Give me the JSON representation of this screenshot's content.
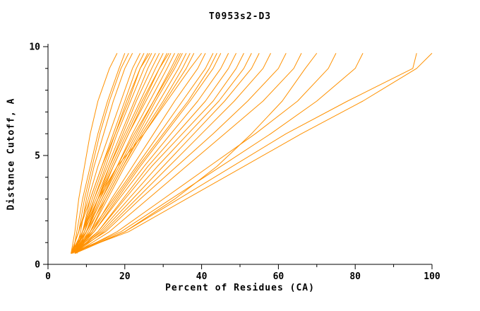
{
  "chart_data": {
    "type": "line",
    "title": "T0953s2-D3",
    "xlabel": "Percent of Residues (CA)",
    "ylabel": "Distance Cutoff, A",
    "xlim": [
      0,
      100
    ],
    "ylim": [
      0,
      10
    ],
    "xticks": [
      0,
      20,
      40,
      60,
      80,
      100
    ],
    "yticks": [
      0,
      5,
      10
    ],
    "x_minor_step": 10,
    "y_minor_step": 1,
    "grid": false,
    "legend": "none",
    "line_color": "#ff9100",
    "axis_color": "#000000",
    "background_color": "#ffffff",
    "y_levels": [
      0.5,
      1.5,
      3,
      4.5,
      6,
      7.5,
      9,
      9.7
    ],
    "series": [
      {
        "x": [
          6,
          7,
          8,
          9.5,
          11,
          13,
          16,
          18
        ]
      },
      {
        "x": [
          6.5,
          7.5,
          9,
          11,
          13,
          15.5,
          18.5,
          20
        ]
      },
      {
        "x": [
          6,
          8,
          9.5,
          11.5,
          13.5,
          16,
          19,
          21
        ]
      },
      {
        "x": [
          7,
          8.5,
          10,
          12,
          14.5,
          17,
          20,
          22
        ]
      },
      {
        "x": [
          6,
          8,
          10.5,
          13,
          16,
          19,
          22,
          24
        ]
      },
      {
        "x": [
          7,
          9,
          11,
          14,
          17,
          20,
          23,
          25
        ]
      },
      {
        "x": [
          6,
          8,
          11,
          14,
          17.5,
          21,
          24,
          26
        ]
      },
      {
        "x": [
          7,
          9,
          11.5,
          14.5,
          17.5,
          20.5,
          24,
          26.5
        ]
      },
      {
        "x": [
          7,
          9.5,
          12,
          15,
          18,
          21.5,
          25,
          27
        ]
      },
      {
        "x": [
          6,
          9,
          12,
          15.5,
          19,
          22.5,
          26,
          28
        ]
      },
      {
        "x": [
          7,
          10,
          13,
          16,
          19.5,
          23,
          27,
          29
        ]
      },
      {
        "x": [
          6,
          9,
          12.5,
          16,
          20,
          24,
          28,
          30
        ]
      },
      {
        "x": [
          7,
          10,
          13.5,
          17,
          21,
          25,
          29,
          31
        ]
      },
      {
        "x": [
          6.5,
          9.5,
          13,
          16.5,
          20.5,
          24.5,
          29,
          31.5
        ]
      },
      {
        "x": [
          6,
          9.5,
          13,
          17,
          21,
          25.5,
          30,
          32
        ]
      },
      {
        "x": [
          7,
          10,
          14,
          18,
          22,
          26.5,
          31,
          33
        ]
      },
      {
        "x": [
          6,
          10,
          14,
          18.5,
          23,
          27.5,
          32,
          34
        ]
      },
      {
        "x": [
          7,
          10,
          13.5,
          18,
          22.5,
          27.5,
          32.5,
          34.5
        ]
      },
      {
        "x": [
          7,
          10.5,
          14.5,
          19,
          23.5,
          28,
          33,
          35
        ]
      },
      {
        "x": [
          6,
          10,
          15,
          19.5,
          24,
          29,
          34,
          36
        ]
      },
      {
        "x": [
          7.5,
          11,
          15,
          19.5,
          24.5,
          30,
          35,
          37
        ]
      },
      {
        "x": [
          7,
          11,
          15.5,
          20,
          25,
          30.5,
          36,
          38
        ]
      },
      {
        "x": [
          6,
          9,
          13,
          18,
          25,
          31,
          37,
          40
        ]
      },
      {
        "x": [
          7,
          11.5,
          16.5,
          22,
          27.5,
          33,
          39,
          41
        ]
      },
      {
        "x": [
          6,
          11,
          17,
          23,
          29,
          35,
          41,
          43
        ]
      },
      {
        "x": [
          6,
          11.5,
          17.5,
          23.5,
          30,
          36.5,
          42,
          44
        ]
      },
      {
        "x": [
          7,
          12,
          18,
          24,
          30.5,
          37,
          43,
          45
        ]
      },
      {
        "x": [
          6,
          12,
          18.5,
          25,
          32,
          39,
          45,
          47
        ]
      },
      {
        "x": [
          7,
          13,
          19.5,
          26,
          33.5,
          41,
          47,
          49
        ]
      },
      {
        "x": [
          6,
          13,
          20,
          27,
          35,
          43,
          49,
          51
        ]
      },
      {
        "x": [
          7,
          13.5,
          21,
          28.5,
          36.5,
          44.5,
          51,
          53
        ]
      },
      {
        "x": [
          6,
          14,
          22,
          30,
          38,
          46,
          53,
          55
        ]
      },
      {
        "x": [
          7,
          14.5,
          23,
          31.5,
          40,
          48.5,
          56,
          58
        ]
      },
      {
        "x": [
          6,
          15,
          24,
          33.5,
          43,
          52,
          60,
          62
        ]
      },
      {
        "x": [
          7,
          16,
          26,
          36,
          46,
          56,
          64,
          66
        ]
      },
      {
        "x": [
          6,
          20,
          33,
          44,
          53,
          61,
          67,
          70
        ]
      },
      {
        "x": [
          7,
          18,
          30,
          42,
          54,
          65,
          73,
          75
        ]
      },
      {
        "x": [
          6,
          19,
          32,
          45,
          58,
          70,
          80,
          82
        ]
      },
      {
        "x": [
          7,
          20,
          34,
          48,
          62,
          78,
          95,
          96
        ]
      },
      {
        "x": [
          6,
          21,
          36,
          51,
          66,
          82,
          96,
          100
        ]
      }
    ]
  }
}
